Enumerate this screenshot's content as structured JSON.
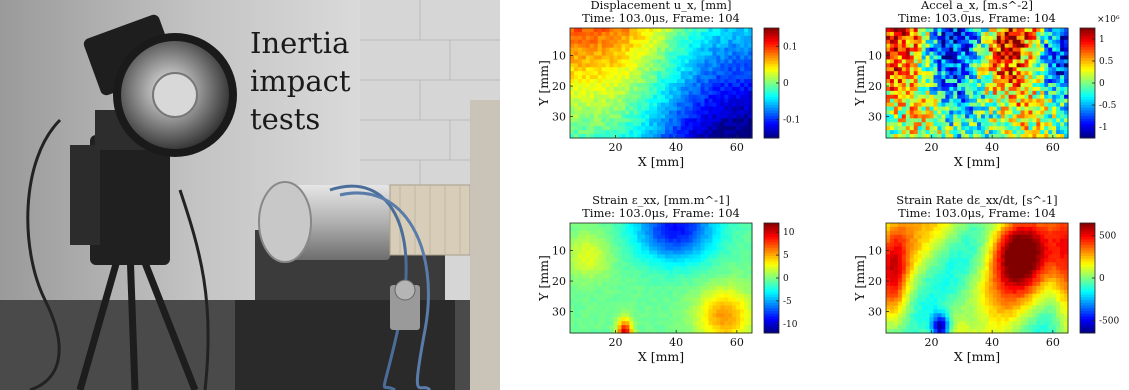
{
  "photo": {
    "caption_lines": [
      "Inertia",
      "impact",
      "tests"
    ]
  },
  "chart_data": [
    {
      "type": "heatmap",
      "title": "Displacement u_x, [mm]",
      "subtitle": "Time: 103.0μs, Frame: 104",
      "xlabel": "X [mm]",
      "ylabel": "Y [mm]",
      "xlim": [
        5,
        65
      ],
      "ylim": [
        1,
        37
      ],
      "xticks": [
        20,
        40,
        60
      ],
      "yticks": [
        10,
        20,
        30
      ],
      "y_reversed": true,
      "colorbar": {
        "range": [
          -0.15,
          0.15
        ],
        "ticks": [
          0.1,
          0,
          -0.1
        ],
        "tick_labels": [
          "0.1",
          "0",
          "-0.1"
        ],
        "multiplier": ""
      },
      "colormap": "jet",
      "field": "gradient from high (top-left, ~0.12) to low (right and bottom-right, ~-0.12)"
    },
    {
      "type": "heatmap",
      "title": "Accel a_x, [m.s^-2]",
      "subtitle": "Time: 103.0μs, Frame: 104",
      "xlabel": "X [mm]",
      "ylabel": "Y [mm]",
      "xlim": [
        5,
        65
      ],
      "ylim": [
        1,
        37
      ],
      "xticks": [
        20,
        40,
        60
      ],
      "yticks": [
        10,
        20,
        30
      ],
      "y_reversed": true,
      "colorbar": {
        "range": [
          -1.25,
          1.25
        ],
        "ticks": [
          1,
          0.5,
          0,
          -0.5,
          -1
        ],
        "tick_labels": [
          "1",
          "0.5",
          "0",
          "-0.5",
          "-1"
        ],
        "multiplier": "×10⁶"
      },
      "colormap": "jet",
      "field": "noisy; positive bands near X≈10 and X≈50, negative band near X≈30"
    },
    {
      "type": "heatmap",
      "title": "Strain ε_xx, [mm.m^-1]",
      "subtitle": "Time: 103.0μs, Frame: 104",
      "xlabel": "X [mm]",
      "ylabel": "Y [mm]",
      "xlim": [
        5,
        65
      ],
      "ylim": [
        1,
        37
      ],
      "xticks": [
        20,
        40,
        60
      ],
      "yticks": [
        10,
        20,
        30
      ],
      "y_reversed": true,
      "colorbar": {
        "range": [
          -12,
          12
        ],
        "ticks": [
          10,
          5,
          0,
          -5,
          -10
        ],
        "tick_labels": [
          "10",
          "5",
          "0",
          "-5",
          "-10"
        ],
        "multiplier": ""
      },
      "colormap": "jet",
      "field": "mostly near 0; negative patch near X≈40,Y≈5; positive spot near X≈23,Y≈36 and X≈55,Y≈30"
    },
    {
      "type": "heatmap",
      "title": "Strain Rate dε_xx/dt, [s^-1]",
      "subtitle": "Time: 103.0μs, Frame: 104",
      "xlabel": "X [mm]",
      "ylabel": "Y [mm]",
      "xlim": [
        5,
        65
      ],
      "ylim": [
        1,
        37
      ],
      "xticks": [
        20,
        40,
        60
      ],
      "yticks": [
        10,
        20,
        30
      ],
      "y_reversed": true,
      "colorbar": {
        "range": [
          -650,
          650
        ],
        "ticks": [
          500,
          0,
          -500
        ],
        "tick_labels": [
          "500",
          "0",
          "-500"
        ],
        "multiplier": ""
      },
      "colormap": "jet",
      "field": "large positive region near X≈48,Y≈12; negative spot near X≈23,Y≈34; positive left and right edges"
    }
  ]
}
